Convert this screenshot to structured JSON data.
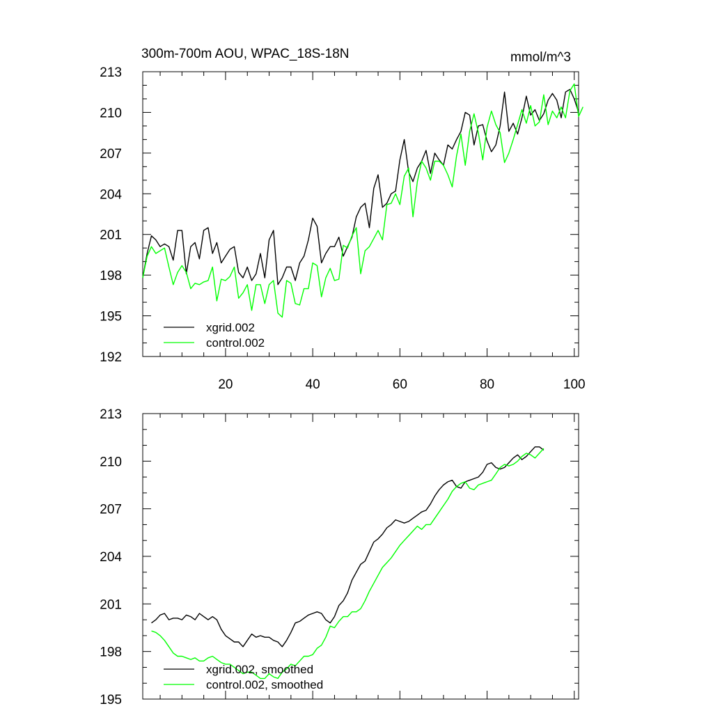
{
  "chart_data": [
    {
      "type": "line",
      "title": "300m-700m AOU, WPAC_18S-18N",
      "units": "mmol/m^3",
      "xlim": [
        1,
        101
      ],
      "ylim": [
        192,
        213
      ],
      "yticks": [
        192,
        195,
        198,
        201,
        204,
        207,
        210,
        213
      ],
      "xticks": [
        20,
        40,
        60,
        80,
        100
      ],
      "series": [
        {
          "name": "xgrid.002",
          "color": "#000000",
          "x_start": 1,
          "values": [
            197.8,
            199.6,
            200.9,
            200.6,
            200.1,
            200.3,
            200.1,
            199.1,
            201.3,
            201.3,
            198.1,
            200.1,
            200.4,
            199.2,
            201.3,
            201.5,
            199.6,
            200.4,
            198.9,
            199.4,
            199.9,
            200.1,
            198.2,
            197.8,
            198.6,
            197.6,
            198.1,
            199.6,
            197.8,
            200.6,
            201.3,
            197.3,
            197.8,
            198.6,
            198.6,
            197.6,
            198.9,
            199.4,
            200.6,
            202.2,
            201.6,
            198.9,
            199.6,
            200.1,
            200.1,
            200.8,
            199.4,
            200.1,
            200.8,
            202.3,
            203.0,
            203.3,
            201.5,
            204.4,
            205.4,
            203.0,
            203.3,
            204.0,
            204.2,
            206.5,
            208.0,
            205.6,
            204.9,
            205.9,
            206.4,
            207.2,
            205.5,
            207.0,
            206.5,
            206.1,
            207.6,
            207.3,
            208.0,
            208.6,
            210.0,
            209.8,
            207.6,
            209.0,
            209.1,
            207.9,
            207.1,
            207.6,
            209.0,
            211.5,
            208.6,
            209.2,
            208.4,
            209.6,
            211.2,
            209.8,
            210.2,
            209.4,
            209.9,
            210.9,
            211.4,
            210.9,
            209.6,
            211.5,
            211.7,
            211.0,
            210.0
          ]
        },
        {
          "name": "control.002",
          "color": "#00ff00",
          "x_start": 1,
          "values": [
            197.8,
            199.4,
            200.1,
            199.6,
            199.8,
            200.0,
            198.6,
            197.3,
            198.2,
            198.7,
            198.2,
            197.0,
            197.4,
            197.3,
            197.5,
            197.6,
            198.6,
            196.1,
            197.7,
            197.6,
            197.9,
            198.6,
            196.3,
            196.7,
            197.3,
            195.4,
            197.3,
            197.3,
            195.9,
            197.3,
            197.6,
            195.2,
            194.9,
            197.6,
            197.4,
            195.9,
            195.8,
            197.0,
            197.0,
            198.9,
            198.7,
            196.4,
            197.8,
            198.5,
            197.6,
            197.7,
            200.2,
            200.0,
            200.9,
            201.5,
            198.1,
            199.8,
            200.1,
            200.7,
            201.3,
            200.6,
            203.2,
            203.3,
            204.0,
            203.2,
            205.3,
            205.9,
            202.3,
            204.9,
            206.4,
            205.9,
            205.0,
            206.4,
            206.4,
            206.1,
            205.4,
            204.5,
            206.8,
            208.4,
            206.1,
            208.6,
            209.9,
            208.5,
            206.5,
            208.9,
            210.1,
            209.1,
            208.5,
            206.3,
            207.0,
            208.0,
            209.1,
            210.2,
            209.2,
            210.5,
            209.0,
            209.3,
            211.3,
            209.1,
            210.1,
            209.6,
            210.4,
            209.6,
            211.6,
            212.1,
            209.7,
            210.4
          ]
        }
      ],
      "legend": [
        "xgrid.002",
        "control.002"
      ]
    },
    {
      "type": "line",
      "title": "",
      "xlim": [
        1,
        101
      ],
      "ylim": [
        195,
        213
      ],
      "yticks": [
        195,
        198,
        201,
        204,
        207,
        210,
        213
      ],
      "series": [
        {
          "name": "xgrid.002, smoothed",
          "color": "#000000",
          "x_start": 3,
          "values": [
            199.8,
            200.0,
            200.3,
            200.4,
            200.0,
            200.1,
            200.1,
            200.0,
            200.3,
            200.2,
            200.0,
            200.4,
            200.2,
            200.0,
            200.2,
            200.0,
            199.4,
            199.0,
            198.8,
            198.6,
            198.6,
            198.3,
            198.7,
            199.1,
            198.9,
            199.0,
            198.9,
            198.9,
            198.7,
            198.6,
            198.3,
            198.7,
            199.2,
            199.8,
            199.9,
            200.1,
            200.3,
            200.4,
            200.5,
            200.4,
            200.0,
            199.8,
            200.2,
            200.9,
            201.2,
            201.7,
            202.5,
            203.0,
            203.5,
            203.7,
            204.3,
            204.9,
            205.1,
            205.4,
            205.8,
            206.0,
            206.3,
            206.2,
            206.1,
            206.2,
            206.4,
            206.6,
            206.8,
            206.9,
            207.3,
            207.8,
            208.2,
            208.5,
            208.7,
            208.8,
            208.4,
            208.3,
            208.7,
            208.8,
            208.9,
            209.0,
            209.3,
            209.8,
            209.9,
            209.6,
            209.5,
            209.6,
            209.9,
            210.2,
            210.4,
            210.1,
            210.3,
            210.6,
            210.9,
            210.9,
            210.7
          ]
        },
        {
          "name": "control.002, smoothed",
          "color": "#00ff00",
          "x_start": 3,
          "values": [
            199.3,
            199.2,
            199.0,
            198.7,
            198.3,
            197.9,
            197.7,
            197.7,
            197.6,
            197.5,
            197.6,
            197.4,
            197.4,
            197.6,
            197.7,
            197.5,
            197.3,
            197.2,
            197.2,
            197.0,
            196.8,
            196.6,
            196.7,
            196.7,
            196.5,
            196.3,
            196.3,
            196.6,
            196.4,
            196.3,
            196.7,
            196.9,
            197.2,
            197.1,
            197.4,
            197.7,
            197.7,
            197.8,
            198.2,
            198.4,
            198.9,
            199.6,
            199.5,
            199.9,
            200.2,
            200.2,
            200.5,
            200.5,
            200.7,
            201.2,
            201.8,
            202.3,
            202.8,
            203.3,
            203.6,
            203.9,
            204.3,
            204.7,
            205.0,
            205.3,
            205.6,
            205.9,
            205.7,
            206.0,
            206.0,
            206.4,
            206.8,
            207.2,
            207.6,
            208.1,
            208.4,
            208.6,
            208.7,
            208.3,
            208.2,
            208.5,
            208.6,
            208.7,
            208.8,
            209.2,
            209.6,
            209.8,
            209.7,
            209.8,
            210.0,
            210.3,
            210.5,
            210.4,
            210.2,
            210.5,
            210.8
          ]
        }
      ],
      "legend": [
        "xgrid.002, smoothed",
        "control.002, smoothed"
      ]
    }
  ]
}
